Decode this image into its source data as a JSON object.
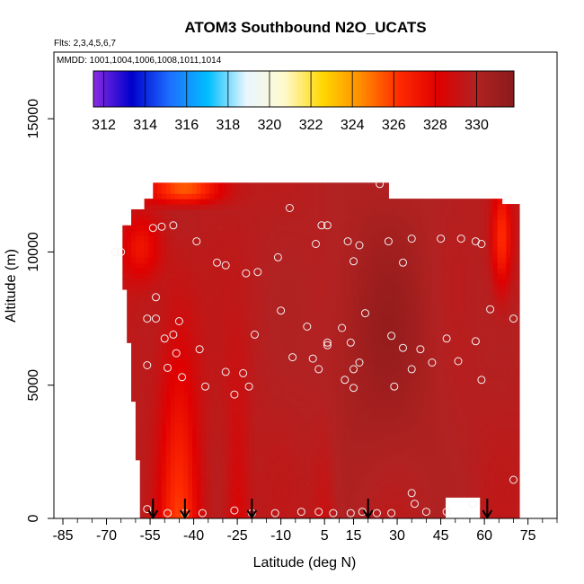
{
  "chart_data": {
    "type": "heatmap",
    "title": "ATOM3 Southbound N2O_UCATS",
    "subtitle_flights": "Flts: 2,3,4,5,6,7",
    "subtitle_dates": "MMDD: 1001,1004,1006,1008,1011,1014",
    "xlabel": "Latitude (deg N)",
    "ylabel": "Altitude (m)",
    "xlim": [
      -85,
      85
    ],
    "ylim": [
      0,
      17500
    ],
    "x_ticks": [
      -85,
      -70,
      -55,
      -40,
      -25,
      -10,
      5,
      15,
      30,
      45,
      60,
      75
    ],
    "x_tick_labels": [
      "-85",
      "-70",
      "-55",
      "-40",
      "-25",
      "-10",
      "5",
      "15",
      "30",
      "45",
      "60",
      "75"
    ],
    "y_ticks": [
      0,
      5000,
      10000,
      15000
    ],
    "y_tick_labels": [
      "0",
      "5000",
      "10000",
      "15000"
    ],
    "colorbar": {
      "min": 311.5,
      "max": 331.8,
      "ticks": [
        312,
        314,
        316,
        318,
        320,
        322,
        324,
        326,
        328,
        330
      ],
      "tick_labels": [
        "312",
        "314",
        "316",
        "318",
        "320",
        "322",
        "324",
        "326",
        "328",
        "330"
      ],
      "color_stops": [
        "#8a2be2",
        "#0000cd",
        "#1e6fff",
        "#00bfff",
        "#eaf6ff",
        "#fffacd",
        "#ffd700",
        "#ff8c00",
        "#ff2a00",
        "#e00000",
        "#b22222",
        "#8b1a1a"
      ]
    },
    "profile_arrow_latitudes": [
      -54,
      -43,
      -20,
      20,
      61
    ],
    "samples": [
      {
        "lat": -67,
        "alt": 10000
      },
      {
        "lat": -65,
        "alt": 10000
      },
      {
        "lat": -54,
        "alt": 10900
      },
      {
        "lat": -51,
        "alt": 10950
      },
      {
        "lat": -47,
        "alt": 11000
      },
      {
        "lat": -39,
        "alt": 10400
      },
      {
        "lat": -32,
        "alt": 9600
      },
      {
        "lat": -29,
        "alt": 9500
      },
      {
        "lat": -22,
        "alt": 9200
      },
      {
        "lat": -18,
        "alt": 9250
      },
      {
        "lat": -11,
        "alt": 9800
      },
      {
        "lat": -7,
        "alt": 11650
      },
      {
        "lat": 2,
        "alt": 10300
      },
      {
        "lat": 4,
        "alt": 11000
      },
      {
        "lat": 6,
        "alt": 11000
      },
      {
        "lat": 13,
        "alt": 10400
      },
      {
        "lat": 15,
        "alt": 9650
      },
      {
        "lat": 17,
        "alt": 10250
      },
      {
        "lat": 24,
        "alt": 12550
      },
      {
        "lat": 27,
        "alt": 10400
      },
      {
        "lat": 32,
        "alt": 9600
      },
      {
        "lat": 35,
        "alt": 10500
      },
      {
        "lat": 45,
        "alt": 10500
      },
      {
        "lat": 52,
        "alt": 10500
      },
      {
        "lat": 57,
        "alt": 10400
      },
      {
        "lat": 59,
        "alt": 10300
      },
      {
        "lat": 68,
        "alt": 11950
      },
      {
        "lat": -53,
        "alt": 8300
      },
      {
        "lat": -56,
        "alt": 7500
      },
      {
        "lat": -53,
        "alt": 7500
      },
      {
        "lat": -50,
        "alt": 6750
      },
      {
        "lat": -47,
        "alt": 6900
      },
      {
        "lat": -45,
        "alt": 7400
      },
      {
        "lat": -56,
        "alt": 5750
      },
      {
        "lat": -49,
        "alt": 5650
      },
      {
        "lat": -46,
        "alt": 6200
      },
      {
        "lat": -38,
        "alt": 6350
      },
      {
        "lat": -44,
        "alt": 5300
      },
      {
        "lat": -36,
        "alt": 4950
      },
      {
        "lat": -29,
        "alt": 5500
      },
      {
        "lat": -26,
        "alt": 4650
      },
      {
        "lat": -23,
        "alt": 5450
      },
      {
        "lat": -21,
        "alt": 4950
      },
      {
        "lat": -19,
        "alt": 6900
      },
      {
        "lat": -10,
        "alt": 7800
      },
      {
        "lat": -6,
        "alt": 6050
      },
      {
        "lat": -1,
        "alt": 7200
      },
      {
        "lat": 3,
        "alt": 5600
      },
      {
        "lat": 1,
        "alt": 6000
      },
      {
        "lat": 6,
        "alt": 6500
      },
      {
        "lat": 6,
        "alt": 6600
      },
      {
        "lat": 11,
        "alt": 7150
      },
      {
        "lat": 14,
        "alt": 6600
      },
      {
        "lat": 17,
        "alt": 5850
      },
      {
        "lat": 15,
        "alt": 5600
      },
      {
        "lat": 12,
        "alt": 5200
      },
      {
        "lat": 15,
        "alt": 4900
      },
      {
        "lat": 19,
        "alt": 7700
      },
      {
        "lat": 28,
        "alt": 6850
      },
      {
        "lat": 29,
        "alt": 4950
      },
      {
        "lat": 32,
        "alt": 6400
      },
      {
        "lat": 35,
        "alt": 5600
      },
      {
        "lat": 38,
        "alt": 6350
      },
      {
        "lat": 42,
        "alt": 5850
      },
      {
        "lat": 47,
        "alt": 6750
      },
      {
        "lat": 51,
        "alt": 5900
      },
      {
        "lat": 57,
        "alt": 6650
      },
      {
        "lat": 59,
        "alt": 5200
      },
      {
        "lat": 62,
        "alt": 7850
      },
      {
        "lat": 70,
        "alt": 7500
      },
      {
        "lat": -56,
        "alt": 350
      },
      {
        "lat": -49,
        "alt": 200
      },
      {
        "lat": -43,
        "alt": 200
      },
      {
        "lat": -37,
        "alt": 200
      },
      {
        "lat": -26,
        "alt": 300
      },
      {
        "lat": -20,
        "alt": 200
      },
      {
        "lat": -12,
        "alt": 200
      },
      {
        "lat": -3,
        "alt": 250
      },
      {
        "lat": 3,
        "alt": 250
      },
      {
        "lat": 8,
        "alt": 200
      },
      {
        "lat": 14,
        "alt": 200
      },
      {
        "lat": 18,
        "alt": 250
      },
      {
        "lat": 23,
        "alt": 200
      },
      {
        "lat": 28,
        "alt": 200
      },
      {
        "lat": 35,
        "alt": 950
      },
      {
        "lat": 36,
        "alt": 550
      },
      {
        "lat": 40,
        "alt": 250
      },
      {
        "lat": 47,
        "alt": 250
      },
      {
        "lat": 56,
        "alt": 550
      },
      {
        "lat": 70,
        "alt": 1450
      }
    ]
  }
}
